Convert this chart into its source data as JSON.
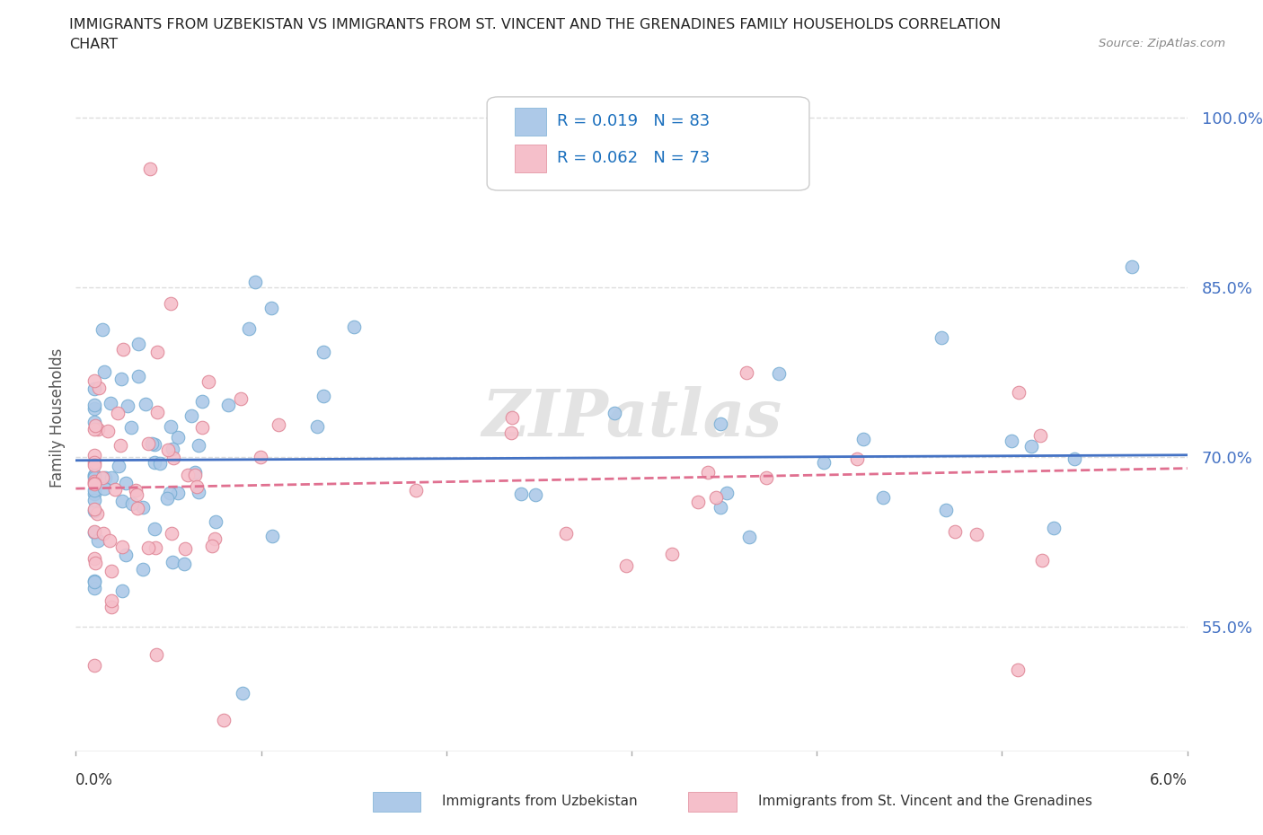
{
  "title_line1": "IMMIGRANTS FROM UZBEKISTAN VS IMMIGRANTS FROM ST. VINCENT AND THE GRENADINES FAMILY HOUSEHOLDS CORRELATION",
  "title_line2": "CHART",
  "source": "Source: ZipAtlas.com",
  "ylabel": "Family Households",
  "series1_label": "Immigrants from Uzbekistan",
  "series1_color": "#adc9e8",
  "series1_edge_color": "#7aafd4",
  "series1_R": 0.019,
  "series1_N": 83,
  "series1_line_color": "#4472c4",
  "series2_label": "Immigrants from St. Vincent and the Grenadines",
  "series2_color": "#f5bfca",
  "series2_edge_color": "#e08898",
  "series2_R": 0.062,
  "series2_N": 73,
  "series2_line_color": "#e07090",
  "xlim": [
    0.0,
    0.06
  ],
  "ylim": [
    0.44,
    1.03
  ],
  "yticks": [
    0.55,
    0.7,
    0.85,
    1.0
  ],
  "ytick_labels": [
    "55.0%",
    "70.0%",
    "85.0%",
    "100.0%"
  ],
  "background_color": "#ffffff",
  "grid_color": "#dddddd",
  "legend_color": "#1a6fbd",
  "watermark_text": "ZIPatlas",
  "scatter_size": 110
}
